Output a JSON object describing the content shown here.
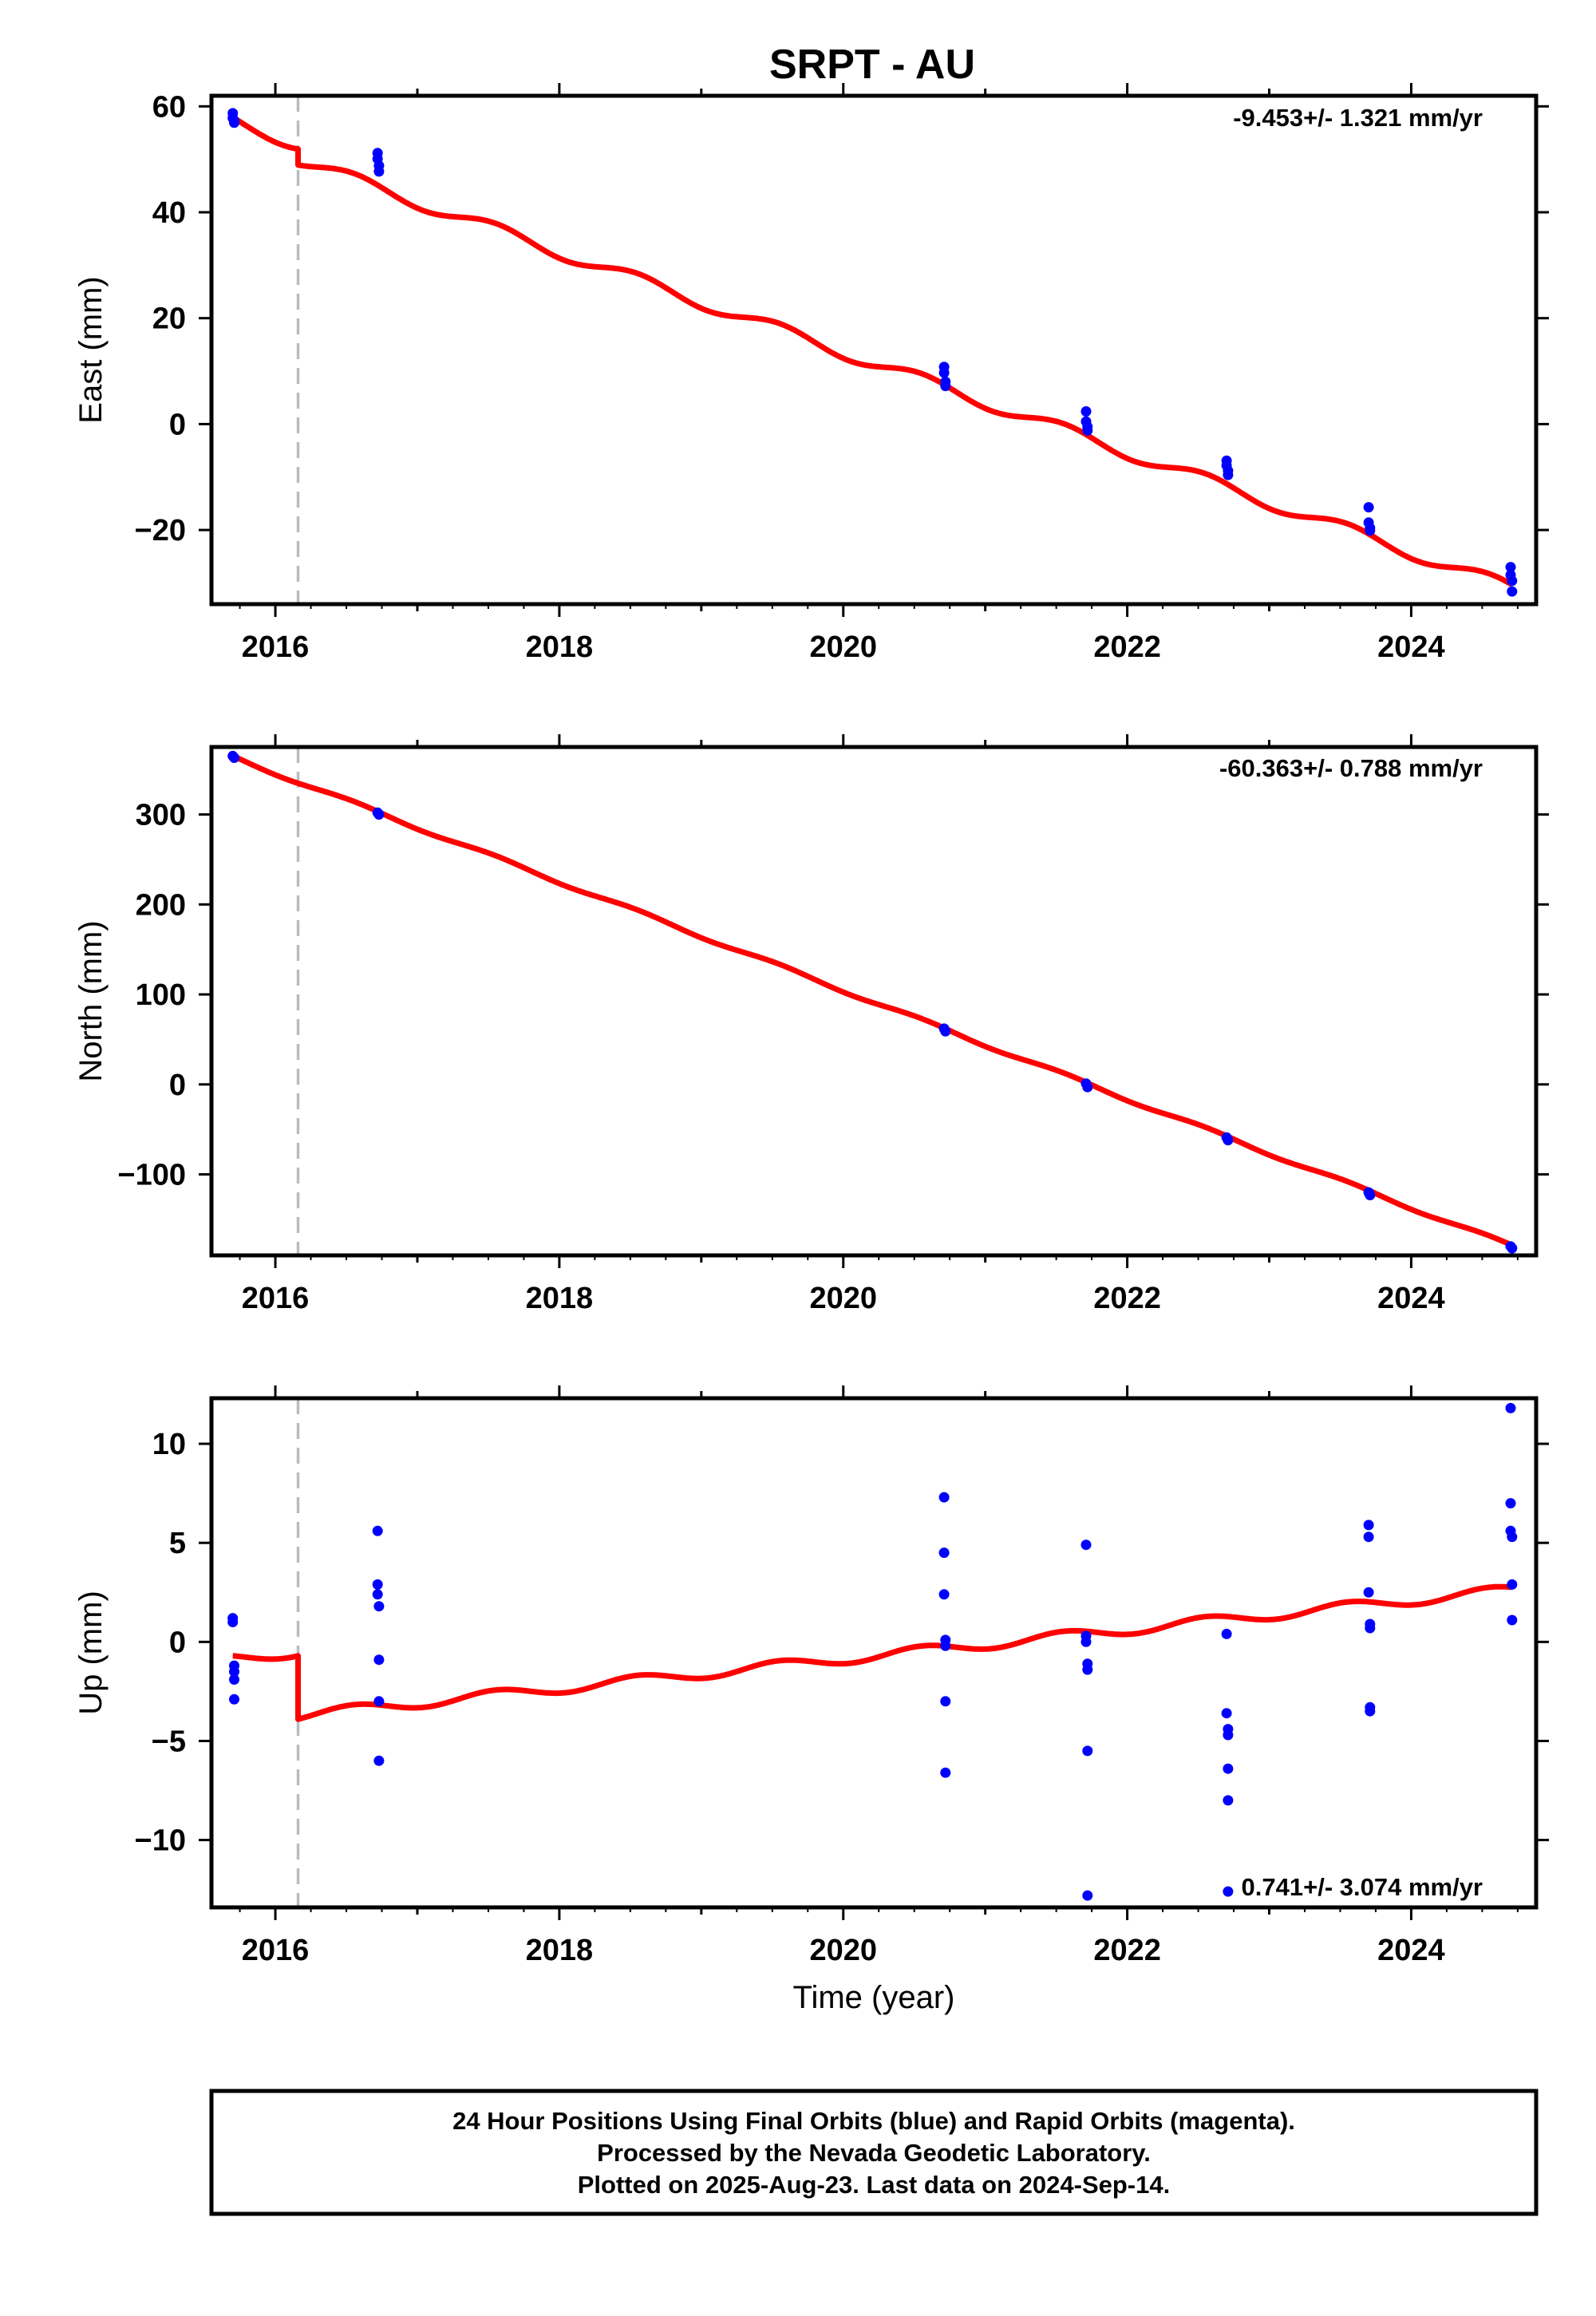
{
  "title": "SRPT - AU",
  "colors": {
    "final_orbits": "#0000ff",
    "model": "#ff0000",
    "offset_line": "#bbbbbb",
    "frame": "#000000"
  },
  "footer": {
    "line1": "24 Hour Positions Using Final Orbits (blue) and Rapid Orbits (magenta).",
    "line2": "Processed by the Nevada Geodetic Laboratory.",
    "line3": "Plotted on 2025-Aug-23. Last data on 2024-Sep-14."
  },
  "chart_data": [
    {
      "type": "scatter",
      "component": "east",
      "ylabel": "East (mm)",
      "xlabel": "",
      "rate_text": "-9.453+/- 1.321 mm/yr",
      "xlim": [
        2015.55,
        2024.88
      ],
      "ylim": [
        -34,
        62
      ],
      "xticks": [
        2016,
        2018,
        2020,
        2022,
        2024
      ],
      "yticks": [
        60,
        40,
        20,
        0,
        -20
      ],
      "ytick_labels": [
        "60",
        "40",
        "20",
        "0",
        "−20"
      ],
      "offset_epoch": 2016.16,
      "model": {
        "intercept_at": 2015.7,
        "intercept": 57.2,
        "rate": -9.453,
        "annual_amp": 1.2,
        "annual_phase": 0.3,
        "offset": -3.0
      },
      "points": [
        [
          2015.7,
          58.7
        ],
        [
          2015.7,
          57.8
        ],
        [
          2015.71,
          56.9
        ],
        [
          2015.71,
          57.3
        ],
        [
          2016.72,
          51.2
        ],
        [
          2016.72,
          50.1
        ],
        [
          2016.73,
          48.8
        ],
        [
          2016.73,
          47.7
        ],
        [
          2020.71,
          10.8
        ],
        [
          2020.71,
          9.7
        ],
        [
          2020.72,
          8.0
        ],
        [
          2020.72,
          7.2
        ],
        [
          2021.71,
          2.4
        ],
        [
          2021.71,
          0.5
        ],
        [
          2021.72,
          -0.5
        ],
        [
          2021.72,
          -1.2
        ],
        [
          2022.7,
          -6.9
        ],
        [
          2022.7,
          -7.8
        ],
        [
          2022.71,
          -8.8
        ],
        [
          2022.71,
          -9.6
        ],
        [
          2023.7,
          -15.7
        ],
        [
          2023.7,
          -18.6
        ],
        [
          2023.71,
          -19.6
        ],
        [
          2023.71,
          -20.1
        ],
        [
          2024.7,
          -27.0
        ],
        [
          2024.7,
          -28.5
        ],
        [
          2024.71,
          -29.6
        ],
        [
          2024.71,
          -31.6
        ]
      ]
    },
    {
      "type": "scatter",
      "component": "north",
      "ylabel": "North (mm)",
      "xlabel": "",
      "rate_text": "-60.363+/- 0.788 mm/yr",
      "xlim": [
        2015.55,
        2024.88
      ],
      "ylim": [
        -190,
        375
      ],
      "xticks": [
        2016,
        2018,
        2020,
        2022,
        2024
      ],
      "yticks": [
        300,
        200,
        100,
        0,
        -100
      ],
      "ytick_labels": [
        "300",
        "200",
        "100",
        "0",
        "−100"
      ],
      "offset_epoch": 2016.16,
      "model": {
        "intercept_at": 2015.7,
        "intercept": 364,
        "rate": -60.363,
        "annual_amp": 2.0,
        "annual_phase": 0.3,
        "offset": 0
      },
      "points": [
        [
          2015.7,
          365
        ],
        [
          2015.71,
          363
        ],
        [
          2016.72,
          302
        ],
        [
          2016.73,
          300
        ],
        [
          2020.71,
          62
        ],
        [
          2020.72,
          59
        ],
        [
          2021.71,
          1
        ],
        [
          2021.72,
          -3
        ],
        [
          2022.7,
          -59
        ],
        [
          2022.71,
          -62
        ],
        [
          2023.7,
          -120
        ],
        [
          2023.71,
          -123
        ],
        [
          2024.7,
          -180
        ],
        [
          2024.71,
          -182
        ]
      ]
    },
    {
      "type": "scatter",
      "component": "up",
      "ylabel": "Up (mm)",
      "xlabel": "Time (year)",
      "rate_text": "0.741+/- 3.074 mm/yr",
      "xlim": [
        2015.55,
        2024.88
      ],
      "ylim": [
        -13.4,
        12.3
      ],
      "xticks": [
        2016,
        2018,
        2020,
        2022,
        2024
      ],
      "yticks": [
        10,
        5,
        0,
        -5,
        -10
      ],
      "ytick_labels": [
        "10",
        "5",
        "0",
        "−5",
        "−10"
      ],
      "offset_epoch": 2016.16,
      "model": {
        "intercept_at": 2015.7,
        "intercept": -0.85,
        "rate": 0.741,
        "annual_amp": 0.25,
        "annual_phase": 0.3,
        "offset": -3.2
      },
      "points": [
        [
          2015.7,
          1.2
        ],
        [
          2015.7,
          1.0
        ],
        [
          2015.71,
          -1.2
        ],
        [
          2015.71,
          -1.5
        ],
        [
          2015.71,
          -1.9
        ],
        [
          2015.71,
          -2.9
        ],
        [
          2016.72,
          5.6
        ],
        [
          2016.72,
          2.9
        ],
        [
          2016.72,
          2.4
        ],
        [
          2016.73,
          1.8
        ],
        [
          2016.73,
          -0.9
        ],
        [
          2016.73,
          -3.0
        ],
        [
          2016.73,
          -6.0
        ],
        [
          2020.71,
          7.3
        ],
        [
          2020.71,
          4.5
        ],
        [
          2020.71,
          2.4
        ],
        [
          2020.72,
          0.1
        ],
        [
          2020.72,
          -0.2
        ],
        [
          2020.72,
          -3.0
        ],
        [
          2020.72,
          -6.6
        ],
        [
          2021.71,
          4.9
        ],
        [
          2021.71,
          0.3
        ],
        [
          2021.71,
          0.0
        ],
        [
          2021.72,
          -1.1
        ],
        [
          2021.72,
          -1.4
        ],
        [
          2021.72,
          -5.5
        ],
        [
          2021.72,
          -12.8
        ],
        [
          2022.7,
          0.4
        ],
        [
          2022.7,
          -3.6
        ],
        [
          2022.71,
          -4.4
        ],
        [
          2022.71,
          -4.7
        ],
        [
          2022.71,
          -6.4
        ],
        [
          2022.71,
          -8.0
        ],
        [
          2022.71,
          -12.6
        ],
        [
          2023.7,
          5.9
        ],
        [
          2023.7,
          5.3
        ],
        [
          2023.7,
          2.5
        ],
        [
          2023.71,
          0.9
        ],
        [
          2023.71,
          0.7
        ],
        [
          2023.71,
          -3.3
        ],
        [
          2023.71,
          -3.5
        ],
        [
          2024.7,
          11.8
        ],
        [
          2024.7,
          7.0
        ],
        [
          2024.7,
          5.6
        ],
        [
          2024.71,
          5.3
        ],
        [
          2024.71,
          2.9
        ],
        [
          2024.71,
          1.1
        ]
      ]
    }
  ]
}
